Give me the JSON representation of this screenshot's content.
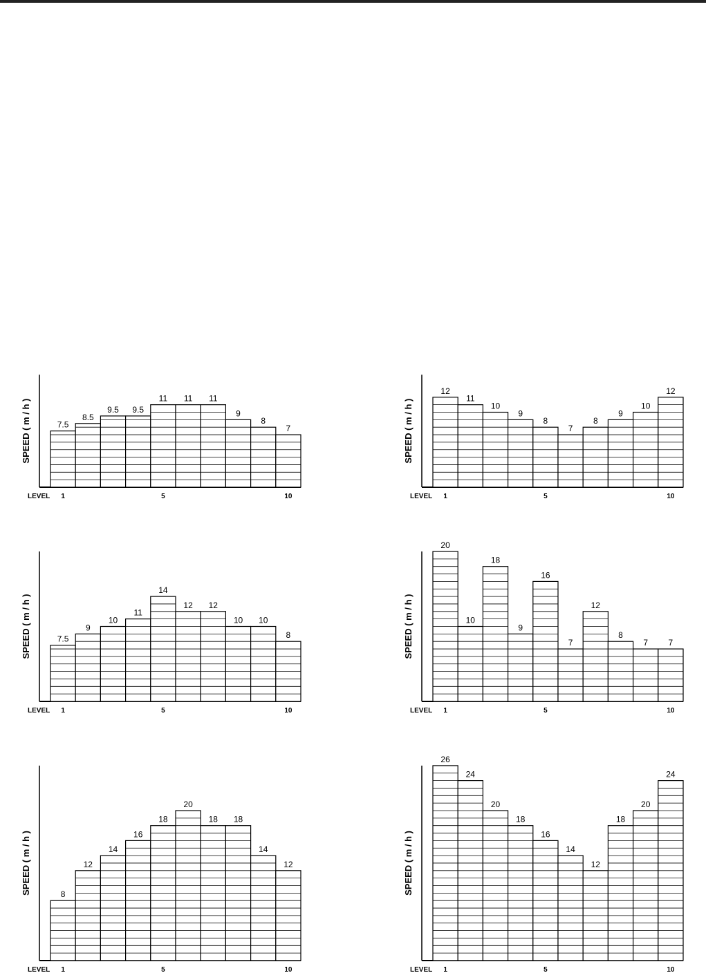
{
  "chart_data": [
    {
      "type": "bar",
      "y_label": "SPEED ( m / h )",
      "x_label": "LEVEL",
      "categories": [
        "1",
        null,
        null,
        null,
        "5",
        null,
        null,
        null,
        null,
        "10"
      ],
      "values": [
        7.5,
        8.5,
        9.5,
        9.5,
        11,
        11,
        11,
        9,
        8,
        7
      ],
      "ylim": [
        0,
        15
      ],
      "color": "#ffffff"
    },
    {
      "type": "bar",
      "y_label": "SPEED ( m / h )",
      "x_label": "LEVEL",
      "categories": [
        "1",
        null,
        null,
        null,
        "5",
        null,
        null,
        null,
        null,
        "10"
      ],
      "values": [
        12,
        11,
        10,
        9,
        8,
        7,
        8,
        9,
        10,
        12
      ],
      "ylim": [
        0,
        15
      ],
      "color": "#ffffff"
    },
    {
      "type": "bar",
      "y_label": "SPEED ( m / h )",
      "x_label": "LEVEL",
      "categories": [
        "1",
        null,
        null,
        null,
        "5",
        null,
        null,
        null,
        null,
        "10"
      ],
      "values": [
        7.5,
        9,
        10,
        11,
        14,
        12,
        12,
        10,
        10,
        8
      ],
      "ylim": [
        0,
        20
      ],
      "color": "#ffffff"
    },
    {
      "type": "bar",
      "y_label": "SPEED ( m / h )",
      "x_label": "LEVEL",
      "categories": [
        "1",
        null,
        null,
        null,
        "5",
        null,
        null,
        null,
        null,
        "10"
      ],
      "values": [
        20,
        10,
        18,
        9,
        16,
        7,
        12,
        8,
        7,
        7
      ],
      "ylim": [
        0,
        20
      ],
      "color": "#ffffff"
    },
    {
      "type": "bar",
      "y_label": "SPEED ( m / h )",
      "x_label": "LEVEL",
      "categories": [
        "1",
        null,
        null,
        null,
        "5",
        null,
        null,
        null,
        null,
        "10"
      ],
      "values": [
        8,
        12,
        14,
        16,
        18,
        20,
        18,
        18,
        14,
        12
      ],
      "ylim": [
        0,
        26
      ],
      "color": "#ffffff"
    },
    {
      "type": "bar",
      "y_label": "SPEED ( m / h )",
      "x_label": "LEVEL",
      "categories": [
        "1",
        null,
        null,
        null,
        "5",
        null,
        null,
        null,
        null,
        "10"
      ],
      "values": [
        26,
        24,
        20,
        18,
        16,
        14,
        12,
        18,
        20,
        24
      ],
      "ylim": [
        0,
        26
      ],
      "color": "#ffffff"
    }
  ]
}
